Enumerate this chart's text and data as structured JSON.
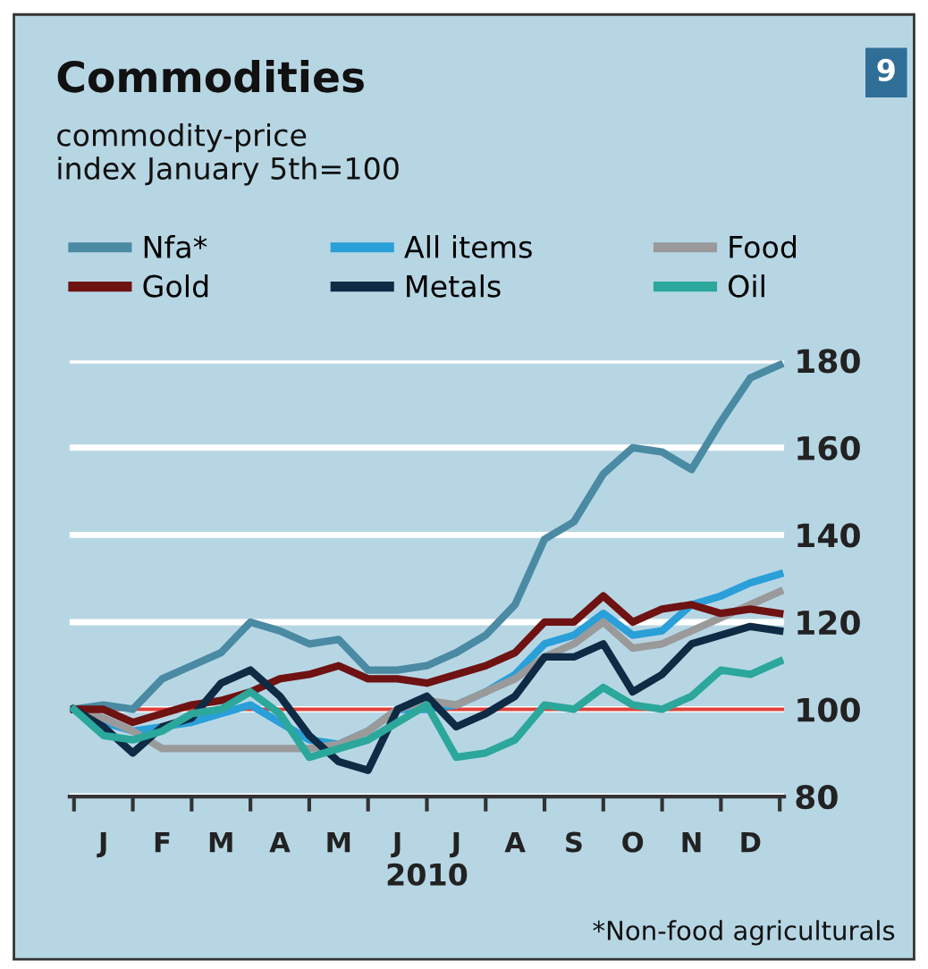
{
  "chart_data": {
    "type": "line",
    "title": "Commodities",
    "subtitle": "commodity-price\nindex January 5th=100",
    "xlabel": "2010",
    "categories": [
      null,
      "J",
      null,
      "F",
      null,
      "M",
      null,
      "A",
      null,
      "M",
      null,
      "J",
      null,
      "J",
      null,
      "A",
      null,
      "S",
      null,
      "O",
      null,
      "N",
      null,
      "D",
      null
    ],
    "series": [
      {
        "name": "Nfa*",
        "color": "#4a8aa3",
        "values": [
          100,
          101,
          100,
          107,
          110,
          113,
          120,
          118,
          115,
          116,
          109,
          109,
          110,
          113,
          117,
          124,
          139,
          143,
          154,
          160,
          159,
          155,
          166,
          176,
          179
        ]
      },
      {
        "name": "All items",
        "color": "#2a9fd8",
        "values": [
          100,
          97,
          95,
          96,
          97,
          99,
          101,
          97,
          93,
          92,
          95,
          100,
          100,
          101,
          104,
          108,
          115,
          117,
          122,
          117,
          118,
          124,
          126,
          129,
          131
        ]
      },
      {
        "name": "Food",
        "color": "#9a9a9a",
        "values": [
          100,
          98,
          95,
          91,
          91,
          91,
          91,
          91,
          91,
          92,
          95,
          100,
          102,
          101,
          104,
          107,
          112,
          115,
          120,
          114,
          115,
          118,
          121,
          124,
          127
        ]
      },
      {
        "name": "Gold",
        "color": "#6e1212",
        "values": [
          100,
          100,
          97,
          99,
          101,
          102,
          104,
          107,
          108,
          110,
          107,
          107,
          106,
          108,
          110,
          113,
          120,
          120,
          126,
          120,
          123,
          124,
          122,
          123,
          122
        ]
      },
      {
        "name": "Metals",
        "color": "#0e2a44",
        "values": [
          100,
          96,
          90,
          96,
          98,
          106,
          109,
          103,
          94,
          88,
          86,
          100,
          103,
          96,
          99,
          103,
          112,
          112,
          115,
          104,
          108,
          115,
          117,
          119,
          118
        ]
      },
      {
        "name": "Oil",
        "color": "#2ba79b",
        "values": [
          100,
          94,
          93,
          95,
          99,
          100,
          104,
          99,
          89,
          91,
          93,
          97,
          101,
          89,
          90,
          93,
          101,
          100,
          105,
          101,
          100,
          103,
          109,
          108,
          111
        ]
      }
    ],
    "ylim": [
      80,
      180
    ],
    "yticks": [
      80,
      100,
      120,
      140,
      160,
      180
    ],
    "grid": "y",
    "legend": "top",
    "ref_lines": [
      {
        "axis": "y",
        "value": 100,
        "color": "#e0403a"
      }
    ],
    "annotations": [
      "9",
      "*Non-food agriculturals"
    ]
  }
}
